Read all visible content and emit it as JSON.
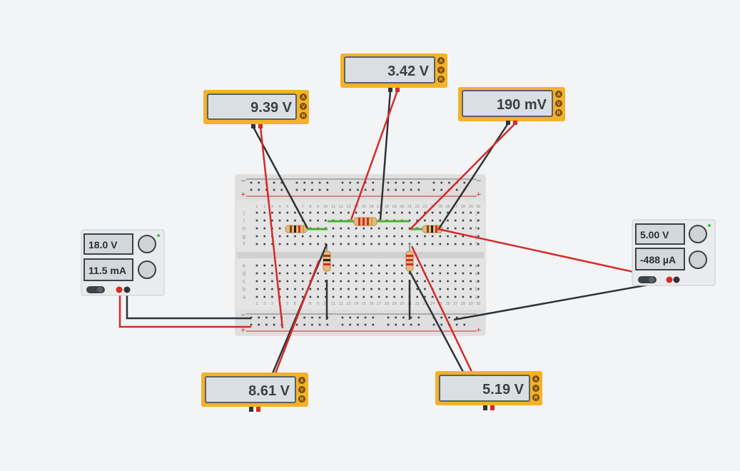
{
  "multimeters": {
    "m1": {
      "reading": "9.39 V",
      "modes": [
        "A",
        "V",
        "R"
      ]
    },
    "m2": {
      "reading": "3.42 V",
      "modes": [
        "A",
        "V",
        "R"
      ]
    },
    "m3": {
      "reading": "190 mV",
      "modes": [
        "A",
        "V",
        "R"
      ]
    },
    "m4": {
      "reading": "8.61 V",
      "modes": [
        "A",
        "V",
        "R"
      ]
    },
    "m5": {
      "reading": "5.19 V",
      "modes": [
        "A",
        "V",
        "R"
      ]
    }
  },
  "power_supplies": {
    "left": {
      "voltage": "18.0 V",
      "current": "11.5 mA"
    },
    "right": {
      "voltage": "5.00 V",
      "current": "-488 µA"
    }
  },
  "breadboard": {
    "rows_top": [
      "j",
      "i",
      "h",
      "g",
      "f"
    ],
    "rows_bottom": [
      "e",
      "d",
      "c",
      "b",
      "a"
    ],
    "rail_minus": "−",
    "rail_plus": "+"
  },
  "colors": {
    "meter_body": "#f4b12a",
    "wire_red": "#d62a2a",
    "wire_black": "#2f3336",
    "wire_green": "#4caf33",
    "breadboard": "#e6e6e6"
  }
}
